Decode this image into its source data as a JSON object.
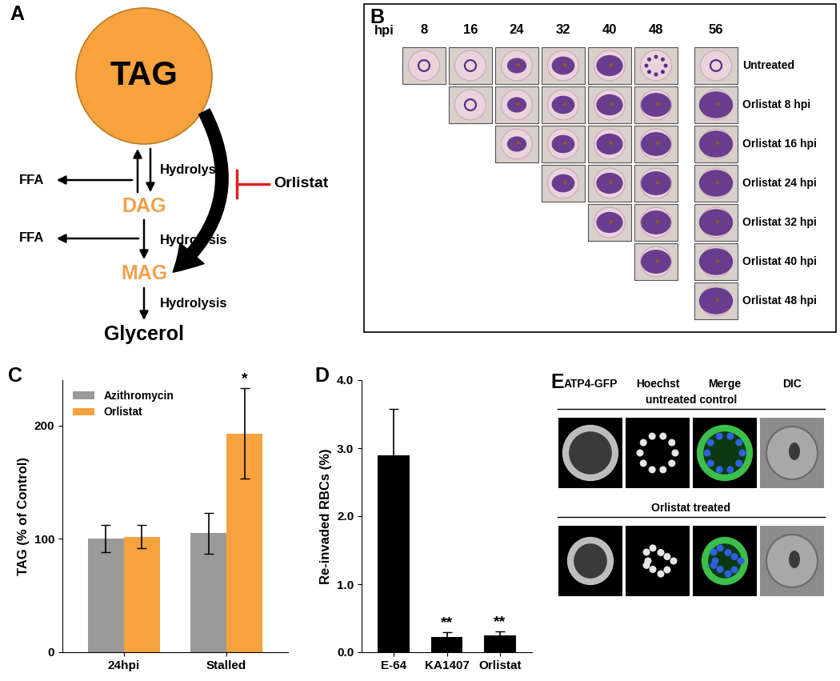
{
  "panel_labels": [
    "A",
    "B",
    "C",
    "D",
    "E"
  ],
  "diagram": {
    "center": "TAG",
    "steps": [
      "DAG",
      "MAG",
      "Glycerol"
    ],
    "step_label": "Hydrolysis",
    "side_product": "FFA",
    "inhibitor": "Orlistat"
  },
  "timecourse": {
    "axis_label": "hpi",
    "columns": [
      8,
      16,
      24,
      32,
      40,
      48,
      56
    ],
    "rows": [
      {
        "label": "Untreated",
        "time_points": [
          8,
          16,
          24,
          32,
          40,
          48,
          56
        ]
      },
      {
        "label": "Orlistat 8 hpi",
        "time_points": [
          16,
          24,
          32,
          40,
          48,
          56
        ]
      },
      {
        "label": "Orlistat 16 hpi",
        "time_points": [
          24,
          32,
          40,
          48,
          56
        ]
      },
      {
        "label": "Orlistat 24 hpi",
        "time_points": [
          32,
          40,
          48,
          56
        ]
      },
      {
        "label": "Orlistat 32 hpi",
        "time_points": [
          40,
          48,
          56
        ]
      },
      {
        "label": "Orlistat 40 hpi",
        "time_points": [
          48,
          56
        ]
      },
      {
        "label": "Orlistat 48 hpi",
        "time_points": [
          56
        ]
      }
    ]
  },
  "chart_data": [
    {
      "type": "bar",
      "ylabel": "TAG (% of Control)",
      "categories": [
        "24hpi",
        "Stalled"
      ],
      "series": [
        {
          "name": "Azithromycin",
          "color": "#9a9a9a",
          "values": [
            100,
            105
          ],
          "errors": [
            12,
            18
          ]
        },
        {
          "name": "Orlistat",
          "color": "#f5a23f",
          "values": [
            102,
            193
          ],
          "errors": [
            10,
            40
          ]
        }
      ],
      "significance": [
        {
          "category": "Stalled",
          "series": "Orlistat",
          "label": "*"
        }
      ],
      "ylim": [
        0,
        240
      ],
      "yticks": [
        0,
        100,
        200
      ],
      "legend": "upper left"
    },
    {
      "type": "bar",
      "ylabel": "Re-invaded RBCs (%)",
      "categories": [
        "E-64",
        "KA1407",
        "Orlistat"
      ],
      "values": [
        2.9,
        0.22,
        0.25
      ],
      "errors": [
        0.68,
        0.08,
        0.06
      ],
      "color": "#000000",
      "significance": [
        {
          "category": "KA1407",
          "label": "**"
        },
        {
          "category": "Orlistat",
          "label": "**"
        }
      ],
      "ylim": [
        0,
        4.0
      ],
      "yticks": [
        {
          "value": 0,
          "label": "0.0"
        },
        {
          "value": 1,
          "label": "1.0"
        },
        {
          "value": 2,
          "label": "2.0"
        },
        {
          "value": 3,
          "label": "3.0"
        },
        {
          "value": 4,
          "label": "4.0"
        }
      ]
    }
  ],
  "microscopy": {
    "columns": [
      "ATP4-GFP",
      "Hoechst",
      "Merge",
      "DIC"
    ],
    "rows": [
      "untreated control",
      "Orlistat treated"
    ]
  }
}
